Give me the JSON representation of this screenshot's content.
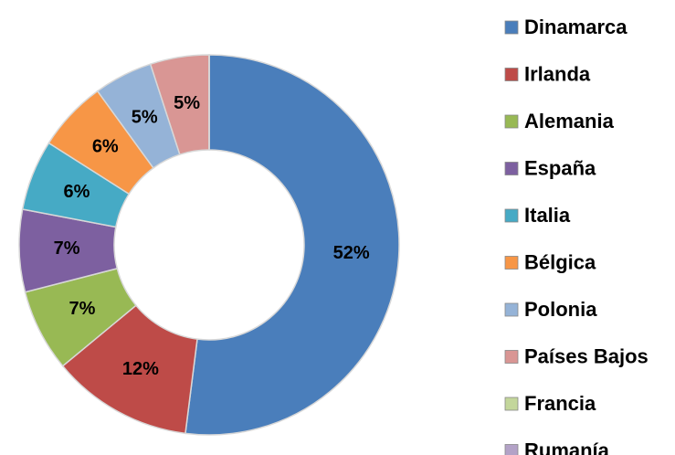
{
  "chart_data": {
    "type": "donut",
    "categories": [
      "Dinamarca",
      "Irlanda",
      "Alemania",
      "España",
      "Italia",
      "Bélgica",
      "Polonia",
      "Países Bajos",
      "Francia",
      "Rumanía"
    ],
    "values": [
      52,
      12,
      7,
      7,
      6,
      6,
      5,
      5,
      0,
      0
    ],
    "value_labels": [
      "52%",
      "12%",
      "7%",
      "7%",
      "6%",
      "6%",
      "5%",
      "5%",
      null,
      null
    ],
    "colors": [
      "#4a7ebb",
      "#be4b48",
      "#98b954",
      "#7d60a0",
      "#46aac5",
      "#f79646",
      "#95b3d7",
      "#d99694",
      "#c3d69b",
      "#b3a2c7"
    ],
    "legend": "right"
  }
}
